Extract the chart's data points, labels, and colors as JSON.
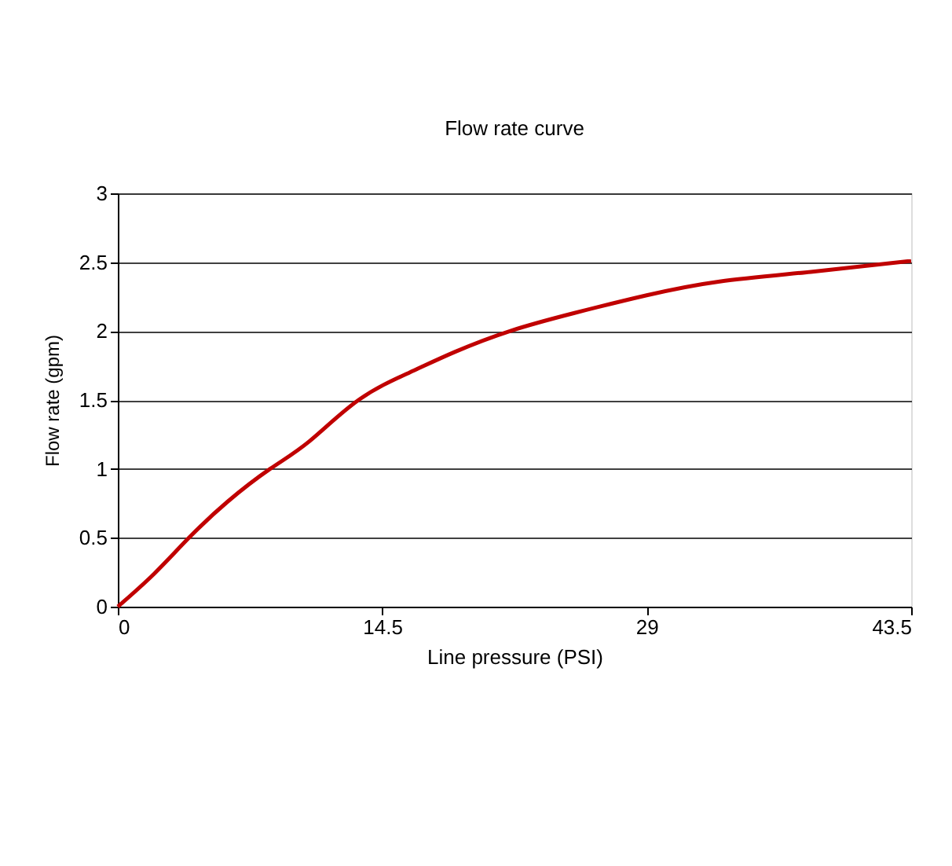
{
  "chart_data": {
    "type": "line",
    "title": "Flow rate curve",
    "xlabel": "Line pressure (PSI)",
    "ylabel": "Flow rate (gpm)",
    "x": [
      0,
      2,
      3.9,
      6,
      8.35,
      10.5,
      13.2,
      16,
      18.5,
      21.5,
      25,
      29,
      33,
      38,
      43.5
    ],
    "series": [
      {
        "color": "#c00000",
        "values": [
          0,
          0.24,
          0.5,
          0.76,
          1.0,
          1.2,
          1.5,
          1.7,
          1.85,
          2.0,
          2.13,
          2.26,
          2.36,
          2.43,
          2.51
        ]
      }
    ],
    "xlim": [
      0,
      43.5
    ],
    "xticks": [
      0,
      14.5,
      29,
      43.5
    ],
    "ylim": [
      0,
      3
    ],
    "yticks": [
      0,
      0.5,
      1,
      1.5,
      2,
      2.5,
      3
    ],
    "grid": "y",
    "marker": "none",
    "line_style": "solid"
  }
}
